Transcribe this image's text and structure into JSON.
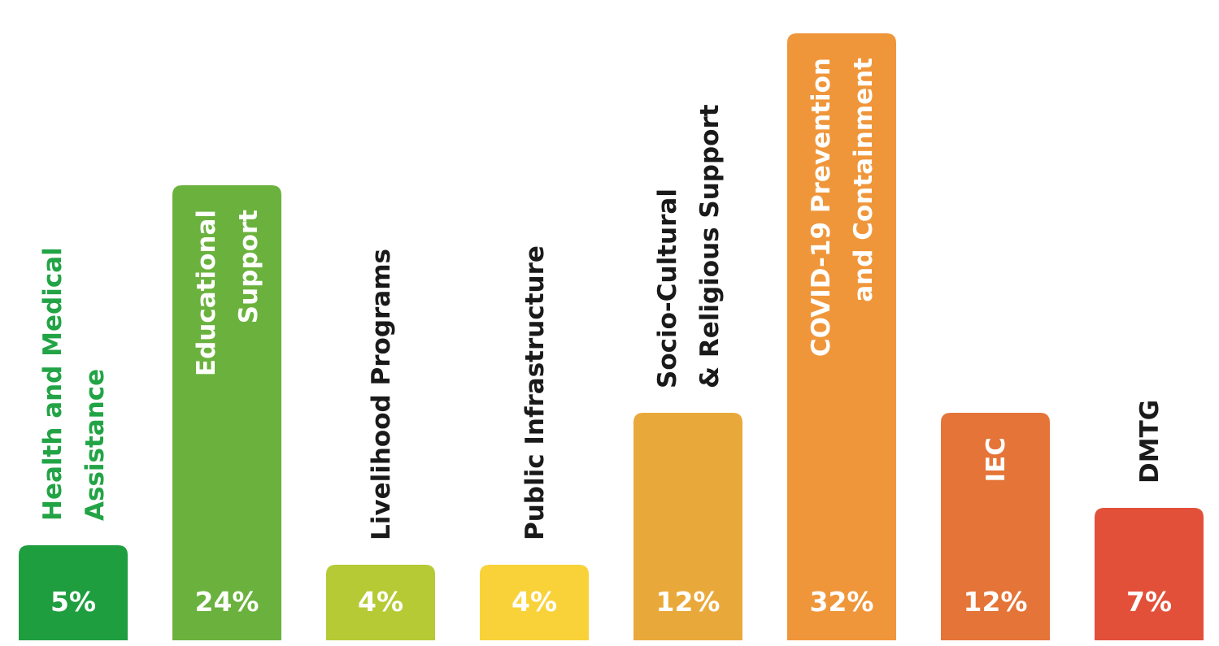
{
  "chart_data": {
    "type": "bar",
    "title": "",
    "xlabel": "",
    "ylabel": "",
    "categories": [
      [
        "Health and Medical",
        "Assistance"
      ],
      [
        "Educational",
        "Support"
      ],
      [
        "Livelihood Programs"
      ],
      [
        "Public Infrastructure"
      ],
      [
        "Socio-Cultural",
        "& Religious Support"
      ],
      [
        "COVID-19 Prevention",
        "and Containment"
      ],
      [
        "IEC"
      ],
      [
        "DMTG"
      ]
    ],
    "values": [
      5,
      24,
      4,
      4,
      12,
      32,
      12,
      7
    ],
    "value_labels": [
      "5%",
      "24%",
      "4%",
      "4%",
      "12%",
      "32%",
      "12%",
      "7%"
    ],
    "colors": [
      "#1f9e3f",
      "#6ab23d",
      "#b5ca34",
      "#f9d23a",
      "#e9a93a",
      "#f0963a",
      "#e57438",
      "#e3503a"
    ],
    "category_label_colors": [
      "#22a446",
      "#ffffff",
      "#1a1a1a",
      "#1a1a1a",
      "#1a1a1a",
      "#ffffff",
      "#ffffff",
      "#1a1a1a"
    ],
    "ylim": [
      0,
      34
    ],
    "grid": false,
    "legend": "none"
  }
}
